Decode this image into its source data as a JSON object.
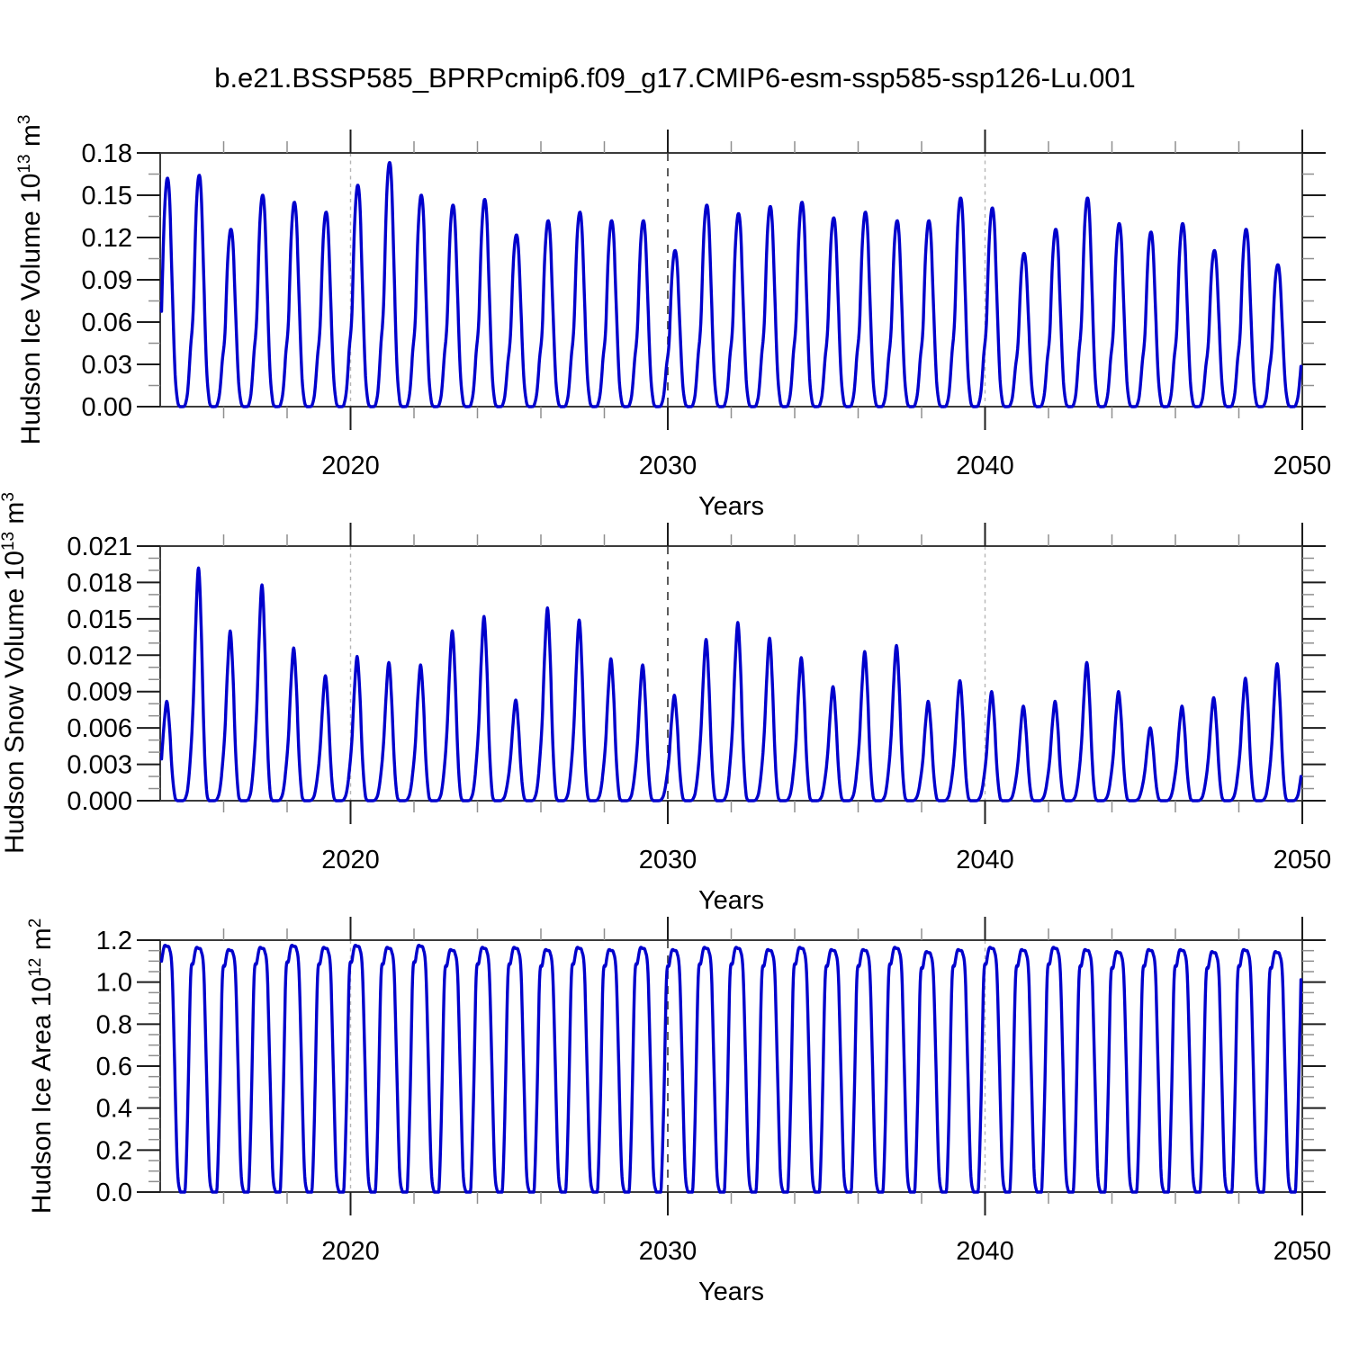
{
  "figure": {
    "title": "b.e21.BSSP585_BPRPcmip6.f09_g17.CMIP6-esm-ssp585-ssp126-Lu.001",
    "line_color": "#0000cc",
    "frame_color": "#3c3c3c",
    "gridline_light_color": "#b5b5b5",
    "gridline_strong_color": "#4a4a4a"
  },
  "chart_data": [
    {
      "type": "line",
      "name": "hudson-ice-volume",
      "ylabel": "Hudson Ice Volume 10^13 m^3",
      "ylabel_parts": {
        "main": "Hudson Ice Volume 10",
        "exp": "13",
        "unit": " m",
        "unit_exp": "3"
      },
      "xlabel": "Years",
      "ylim": [
        0,
        0.18
      ],
      "ytick_step": 0.03,
      "ytick_minor_step": 0.015,
      "ytick_labels": [
        "0.00",
        "0.03",
        "0.06",
        "0.09",
        "0.12",
        "0.15",
        "0.18"
      ],
      "xlim": [
        2014,
        2050
      ],
      "xtick_major": [
        2020,
        2030,
        2040,
        2050
      ],
      "xtick_labels": [
        "2020",
        "2030",
        "2040",
        "2050"
      ],
      "xtick_minor_step": 2,
      "dashed_lines": [
        2020,
        2030,
        2040
      ],
      "grid": false,
      "legend_position": "none",
      "series": {
        "cadence": "monthly",
        "start_year": 2014,
        "end_year": 2050,
        "peak_month": 3,
        "annual_peaks": [
          0.161,
          0.163,
          0.125,
          0.149,
          0.144,
          0.137,
          0.156,
          0.172,
          0.149,
          0.142,
          0.146,
          0.121,
          0.131,
          0.137,
          0.131,
          0.131,
          0.11,
          0.142,
          0.136,
          0.141,
          0.144,
          0.133,
          0.137,
          0.131,
          0.131,
          0.147,
          0.14,
          0.108,
          0.125,
          0.147,
          0.129,
          0.123,
          0.129,
          0.11,
          0.125,
          0.1,
          0.11
        ],
        "seasonal_shape_jan_to_dec": [
          0.42,
          0.82,
          1.0,
          0.93,
          0.55,
          0.18,
          0.03,
          0.0,
          0.0,
          0.01,
          0.08,
          0.26
        ]
      }
    },
    {
      "type": "line",
      "name": "hudson-snow-volume",
      "ylabel": "Hudson Snow Volume 10^13 m^3",
      "ylabel_parts": {
        "main": "Hudson Snow Volume 10",
        "exp": "13",
        "unit": " m",
        "unit_exp": "3"
      },
      "xlabel": "Years",
      "ylim": [
        0,
        0.021
      ],
      "ytick_step": 0.003,
      "ytick_minor_step": 0.001,
      "ytick_labels": [
        "0.000",
        "0.003",
        "0.006",
        "0.009",
        "0.012",
        "0.015",
        "0.018",
        "0.021"
      ],
      "xlim": [
        2014,
        2050
      ],
      "xtick_major": [
        2020,
        2030,
        2040,
        2050
      ],
      "xtick_labels": [
        "2020",
        "2030",
        "2040",
        "2050"
      ],
      "xtick_minor_step": 2,
      "dashed_lines": [
        2020,
        2030,
        2040
      ],
      "grid": false,
      "legend_position": "none",
      "series": {
        "cadence": "monthly",
        "start_year": 2014,
        "end_year": 2050,
        "peak_month": 3,
        "annual_peaks": [
          0.0082,
          0.0192,
          0.014,
          0.0178,
          0.0126,
          0.0103,
          0.0119,
          0.0114,
          0.0112,
          0.014,
          0.0152,
          0.0083,
          0.0159,
          0.0149,
          0.0117,
          0.0112,
          0.0087,
          0.0133,
          0.0147,
          0.0134,
          0.0118,
          0.0094,
          0.0123,
          0.0128,
          0.0082,
          0.0099,
          0.009,
          0.0078,
          0.0082,
          0.0114,
          0.009,
          0.006,
          0.0078,
          0.0085,
          0.0101,
          0.0113,
          0.01
        ],
        "seasonal_shape_jan_to_dec": [
          0.42,
          0.78,
          1.0,
          0.75,
          0.3,
          0.05,
          0.0,
          0.0,
          0.0,
          0.01,
          0.06,
          0.2
        ]
      }
    },
    {
      "type": "line",
      "name": "hudson-ice-area",
      "ylabel": "Hudson Ice Area 10^12 m^2",
      "ylabel_parts": {
        "main": "Hudson Ice Area 10",
        "exp": "12",
        "unit": " m",
        "unit_exp": "2"
      },
      "xlabel": "Years",
      "ylim": [
        0,
        1.2
      ],
      "ytick_step": 0.2,
      "ytick_minor_step": 0.05,
      "ytick_labels": [
        "0.0",
        "0.2",
        "0.4",
        "0.6",
        "0.8",
        "1.0",
        "1.2"
      ],
      "xlim": [
        2014,
        2050
      ],
      "xtick_major": [
        2020,
        2030,
        2040,
        2050
      ],
      "xtick_labels": [
        "2020",
        "2030",
        "2040",
        "2050"
      ],
      "xtick_minor_step": 2,
      "dashed_lines": [
        2020,
        2030,
        2040
      ],
      "grid": false,
      "legend_position": "none",
      "series": {
        "cadence": "monthly",
        "start_year": 2014,
        "end_year": 2050,
        "peak_month": 2,
        "annual_peaks": [
          1.17,
          1.16,
          1.15,
          1.16,
          1.17,
          1.16,
          1.17,
          1.16,
          1.17,
          1.15,
          1.16,
          1.16,
          1.15,
          1.16,
          1.15,
          1.16,
          1.15,
          1.16,
          1.16,
          1.15,
          1.16,
          1.15,
          1.15,
          1.16,
          1.14,
          1.15,
          1.16,
          1.15,
          1.16,
          1.15,
          1.14,
          1.15,
          1.15,
          1.14,
          1.15,
          1.14,
          1.15
        ],
        "seasonal_shape_jan_to_dec": [
          0.94,
          1.0,
          1.0,
          0.99,
          0.9,
          0.5,
          0.1,
          0.005,
          0.0,
          0.02,
          0.38,
          0.88
        ]
      }
    }
  ]
}
